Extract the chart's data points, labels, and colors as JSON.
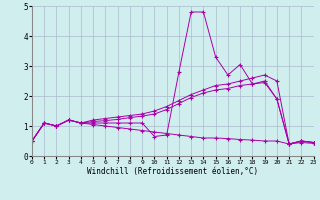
{
  "xlabel": "Windchill (Refroidissement éolien,°C)",
  "xlim": [
    0,
    23
  ],
  "ylim": [
    0,
    5
  ],
  "xticks": [
    0,
    1,
    2,
    3,
    4,
    5,
    6,
    7,
    8,
    9,
    10,
    11,
    12,
    13,
    14,
    15,
    16,
    17,
    18,
    19,
    20,
    21,
    22,
    23
  ],
  "yticks": [
    0,
    1,
    2,
    3,
    4,
    5
  ],
  "bg_color": "#d0eeee",
  "line_color": "#aa00aa",
  "grid_color": "#aabbcc",
  "lines": [
    {
      "x": [
        0,
        1,
        2,
        3,
        4,
        5,
        6,
        7,
        8,
        9,
        10,
        11,
        12,
        13,
        14,
        15,
        16,
        17,
        18,
        19,
        20,
        21,
        22,
        23
      ],
      "y": [
        0.5,
        1.1,
        1.0,
        1.2,
        1.1,
        1.1,
        1.1,
        1.1,
        1.1,
        1.1,
        0.65,
        0.7,
        2.8,
        4.8,
        4.8,
        3.3,
        2.7,
        3.05,
        2.4,
        2.45,
        1.9,
        0.4,
        0.5,
        0.45
      ]
    },
    {
      "x": [
        0,
        1,
        2,
        3,
        4,
        5,
        6,
        7,
        8,
        9,
        10,
        11,
        12,
        13,
        14,
        15,
        16,
        17,
        18,
        19,
        20,
        21,
        22,
        23
      ],
      "y": [
        0.5,
        1.1,
        1.0,
        1.2,
        1.1,
        1.2,
        1.25,
        1.3,
        1.35,
        1.4,
        1.5,
        1.65,
        1.85,
        2.05,
        2.2,
        2.35,
        2.4,
        2.5,
        2.6,
        2.7,
        2.5,
        0.4,
        0.5,
        0.45
      ]
    },
    {
      "x": [
        0,
        1,
        2,
        3,
        4,
        5,
        6,
        7,
        8,
        9,
        10,
        11,
        12,
        13,
        14,
        15,
        16,
        17,
        18,
        19,
        20,
        21,
        22,
        23
      ],
      "y": [
        0.5,
        1.1,
        1.0,
        1.2,
        1.1,
        1.15,
        1.18,
        1.22,
        1.28,
        1.33,
        1.4,
        1.55,
        1.75,
        1.95,
        2.1,
        2.2,
        2.25,
        2.35,
        2.4,
        2.5,
        1.9,
        0.4,
        0.5,
        0.45
      ]
    },
    {
      "x": [
        0,
        1,
        2,
        3,
        4,
        5,
        6,
        7,
        8,
        9,
        10,
        11,
        12,
        13,
        14,
        15,
        16,
        17,
        18,
        19,
        20,
        21,
        22,
        23
      ],
      "y": [
        0.5,
        1.1,
        1.0,
        1.2,
        1.1,
        1.05,
        1.0,
        0.95,
        0.9,
        0.85,
        0.8,
        0.75,
        0.7,
        0.65,
        0.6,
        0.6,
        0.58,
        0.55,
        0.53,
        0.5,
        0.5,
        0.4,
        0.45,
        0.42
      ]
    }
  ]
}
